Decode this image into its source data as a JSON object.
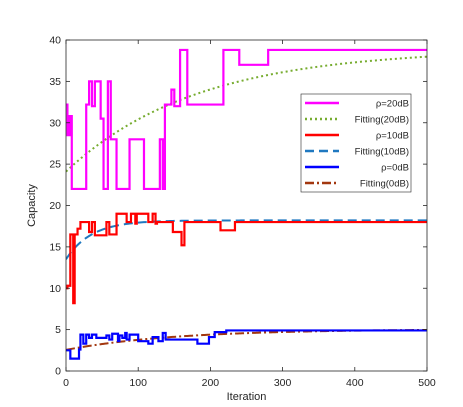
{
  "chart_data": {
    "type": "line",
    "title": "",
    "xlabel": "Iteration",
    "ylabel": "Capacity",
    "xlim": [
      0,
      500
    ],
    "ylim": [
      0,
      40
    ],
    "xticks": [
      0,
      100,
      200,
      300,
      400,
      500
    ],
    "yticks": [
      0,
      5,
      10,
      15,
      20,
      25,
      30,
      35,
      40
    ],
    "grid": false,
    "legend_position": "top-right",
    "series": [
      {
        "name": "ρ=20dB",
        "color": "#ff00ff",
        "style": "solid",
        "step": true,
        "points": [
          [
            0,
            32.2
          ],
          [
            2,
            28.5
          ],
          [
            5,
            30.8
          ],
          [
            8,
            22
          ],
          [
            28,
            32.2
          ],
          [
            32,
            35
          ],
          [
            36,
            32
          ],
          [
            40,
            35
          ],
          [
            46,
            35
          ],
          [
            48,
            30.5
          ],
          [
            52,
            22
          ],
          [
            58,
            35
          ],
          [
            62,
            28
          ],
          [
            66,
            28
          ],
          [
            70,
            22
          ],
          [
            80,
            22
          ],
          [
            84,
            22
          ],
          [
            88,
            28
          ],
          [
            104,
            28
          ],
          [
            108,
            22
          ],
          [
            124,
            22
          ],
          [
            130,
            28
          ],
          [
            134,
            22
          ],
          [
            137,
            32.2
          ],
          [
            142,
            32.2
          ],
          [
            146,
            34
          ],
          [
            150,
            32
          ],
          [
            154,
            32
          ],
          [
            158,
            38.8
          ],
          [
            164,
            38.8
          ],
          [
            168,
            32.2
          ],
          [
            214,
            32.2
          ],
          [
            218,
            38.8
          ],
          [
            236,
            38.8
          ],
          [
            240,
            37
          ],
          [
            276,
            37
          ],
          [
            280,
            38.8
          ],
          [
            500,
            38.8
          ]
        ]
      },
      {
        "name": "Fitting(20dB)",
        "color": "#77ac30",
        "style": "dotted",
        "fit": {
          "form": "exp",
          "a": 38.9,
          "b": 14.8,
          "c": 180
        }
      },
      {
        "name": "ρ=10dB",
        "color": "#ff0000",
        "style": "solid",
        "step": true,
        "points": [
          [
            0,
            10
          ],
          [
            2,
            10.3
          ],
          [
            6,
            16.5
          ],
          [
            10,
            8.2
          ],
          [
            12,
            16.5
          ],
          [
            16,
            17.2
          ],
          [
            20,
            18
          ],
          [
            30,
            18
          ],
          [
            32,
            16.8
          ],
          [
            36,
            18
          ],
          [
            40,
            16.4
          ],
          [
            54,
            16.4
          ],
          [
            56,
            18
          ],
          [
            58,
            18
          ],
          [
            60,
            16.5
          ],
          [
            68,
            16.5
          ],
          [
            70,
            19
          ],
          [
            82,
            19
          ],
          [
            84,
            18
          ],
          [
            88,
            18
          ],
          [
            90,
            19
          ],
          [
            94,
            19
          ],
          [
            96,
            17.8
          ],
          [
            98,
            19
          ],
          [
            112,
            19
          ],
          [
            114,
            18
          ],
          [
            116,
            18
          ],
          [
            120,
            19
          ],
          [
            124,
            17.8
          ],
          [
            126,
            18
          ],
          [
            146,
            18
          ],
          [
            148,
            16.8
          ],
          [
            156,
            16.8
          ],
          [
            160,
            15.2
          ],
          [
            164,
            18
          ],
          [
            212,
            18
          ],
          [
            214,
            17
          ],
          [
            232,
            17
          ],
          [
            234,
            18
          ],
          [
            500,
            18
          ]
        ]
      },
      {
        "name": "Fitting(10dB)",
        "color": "#1f78c0",
        "style": "dashed",
        "fit": {
          "form": "exp",
          "a": 18.2,
          "b": 4.7,
          "c": 35
        }
      },
      {
        "name": "ρ=0dB",
        "color": "#0000ff",
        "style": "solid",
        "step": true,
        "points": [
          [
            0,
            2.5
          ],
          [
            4,
            2.5
          ],
          [
            6,
            1.5
          ],
          [
            16,
            1.5
          ],
          [
            18,
            2.6
          ],
          [
            20,
            4.4
          ],
          [
            22,
            4.4
          ],
          [
            24,
            3.3
          ],
          [
            28,
            4.4
          ],
          [
            32,
            4
          ],
          [
            36,
            4.4
          ],
          [
            42,
            4
          ],
          [
            54,
            4
          ],
          [
            56,
            4.3
          ],
          [
            60,
            3.8
          ],
          [
            64,
            4.5
          ],
          [
            70,
            4.5
          ],
          [
            72,
            3.6
          ],
          [
            74,
            4.3
          ],
          [
            78,
            4
          ],
          [
            82,
            4.6
          ],
          [
            84,
            3.8
          ],
          [
            88,
            4.4
          ],
          [
            98,
            4.4
          ],
          [
            100,
            3.6
          ],
          [
            112,
            3.6
          ],
          [
            114,
            3.3
          ],
          [
            118,
            3.3
          ],
          [
            120,
            4.1
          ],
          [
            126,
            4.1
          ],
          [
            128,
            3.6
          ],
          [
            132,
            3.6
          ],
          [
            134,
            4.6
          ],
          [
            138,
            3.8
          ],
          [
            170,
            3.8
          ],
          [
            178,
            3.8
          ],
          [
            182,
            3.3
          ],
          [
            196,
            3.3
          ],
          [
            198,
            4.1
          ],
          [
            204,
            4.1
          ],
          [
            206,
            4.7
          ],
          [
            218,
            4.7
          ],
          [
            222,
            4.9
          ],
          [
            500,
            4.9
          ]
        ]
      },
      {
        "name": "Fitting(0dB)",
        "color": "#a2370f",
        "style": "dashdot",
        "fit": {
          "form": "exp",
          "a": 5.05,
          "b": 2.5,
          "c": 150
        }
      }
    ]
  }
}
